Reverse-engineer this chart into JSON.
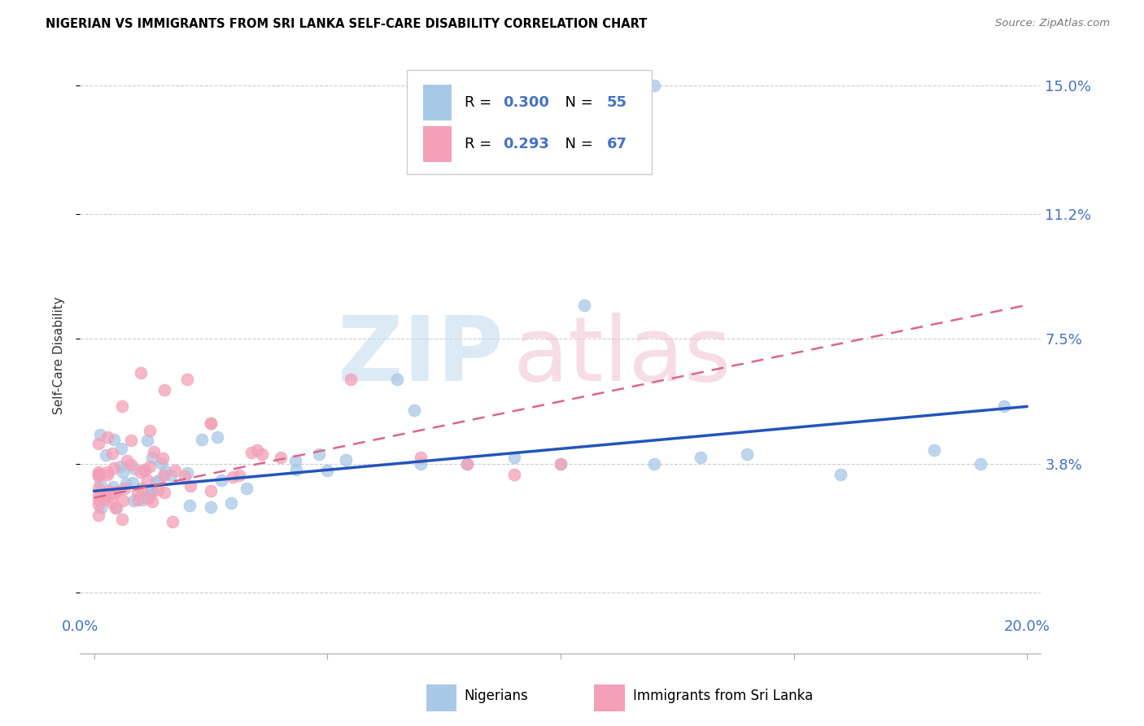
{
  "title": "NIGERIAN VS IMMIGRANTS FROM SRI LANKA SELF-CARE DISABILITY CORRELATION CHART",
  "source": "Source: ZipAtlas.com",
  "ylabel": "Self-Care Disability",
  "ytick_vals": [
    0.0,
    0.038,
    0.075,
    0.112,
    0.15
  ],
  "ytick_labels": [
    "",
    "3.8%",
    "7.5%",
    "11.2%",
    "15.0%"
  ],
  "xlim": [
    0.0,
    0.2
  ],
  "ylim": [
    -0.018,
    0.158
  ],
  "legend_r1": "0.300",
  "legend_n1": "55",
  "legend_r2": "0.293",
  "legend_n2": "67",
  "blue_scatter_color": "#a8c8e8",
  "pink_scatter_color": "#f4a0b8",
  "blue_line_color": "#2255bb",
  "pink_line_color": "#dd6688",
  "axis_color": "#4472c4",
  "text_color": "#333333",
  "grid_color": "#cccccc",
  "nig_blue_line_start_y": 0.03,
  "nig_blue_line_end_y": 0.055,
  "sl_pink_line_start_y": 0.028,
  "sl_pink_line_end_y": 0.085
}
